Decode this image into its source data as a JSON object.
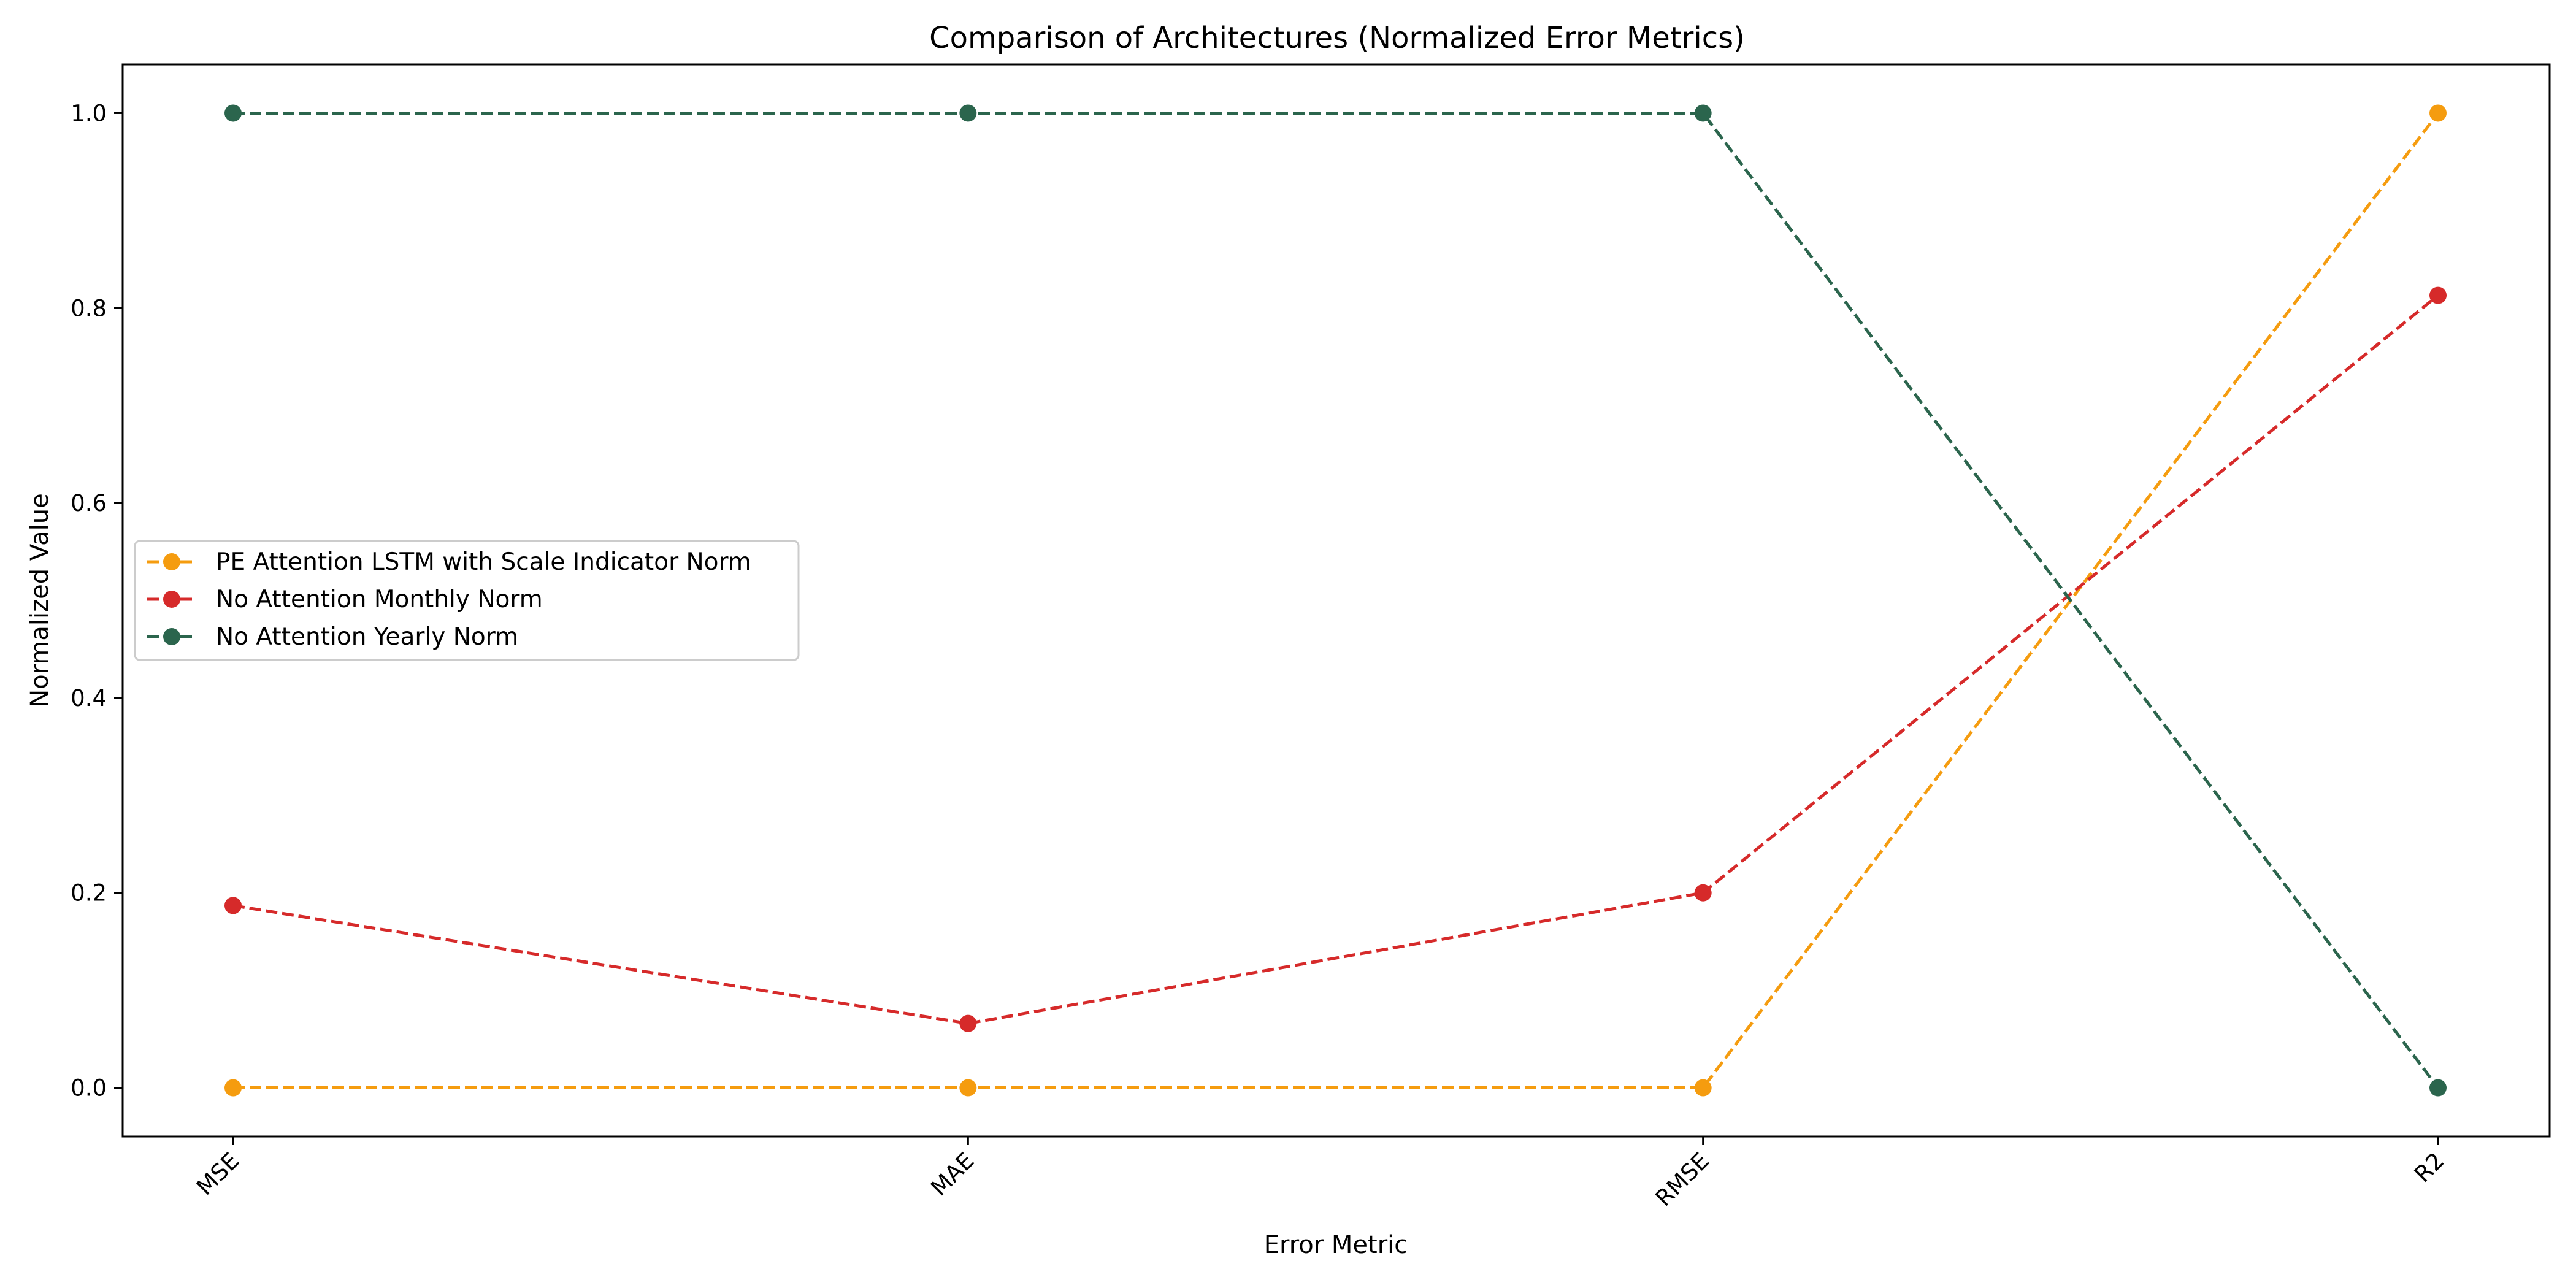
{
  "chart_data": {
    "type": "line",
    "title": "Comparison of Architectures (Normalized Error Metrics)",
    "xlabel": "Error Metric",
    "ylabel": "Normalized Value",
    "categories": [
      "MSE",
      "MAE",
      "RMSE",
      "R2"
    ],
    "ylim": [
      -0.05,
      1.05
    ],
    "yticks": [
      0.0,
      0.2,
      0.4,
      0.6,
      0.8,
      1.0
    ],
    "ytick_labels": [
      "0.0",
      "0.2",
      "0.4",
      "0.6",
      "0.8",
      "1.0"
    ],
    "grid": false,
    "legend_position": "center-left",
    "line_style": "dashed",
    "marker": "circle",
    "series": [
      {
        "name": "PE Attention LSTM with Scale Indicator Norm",
        "color": "#f59c0f",
        "values": [
          0.0,
          0.0,
          0.0,
          1.0
        ]
      },
      {
        "name": "No Attention Monthly Norm",
        "color": "#d62a2a",
        "values": [
          0.187,
          0.066,
          0.2,
          0.813
        ]
      },
      {
        "name": "No Attention Yearly Norm",
        "color": "#2b654d",
        "values": [
          1.0,
          1.0,
          1.0,
          0.0
        ]
      }
    ]
  }
}
